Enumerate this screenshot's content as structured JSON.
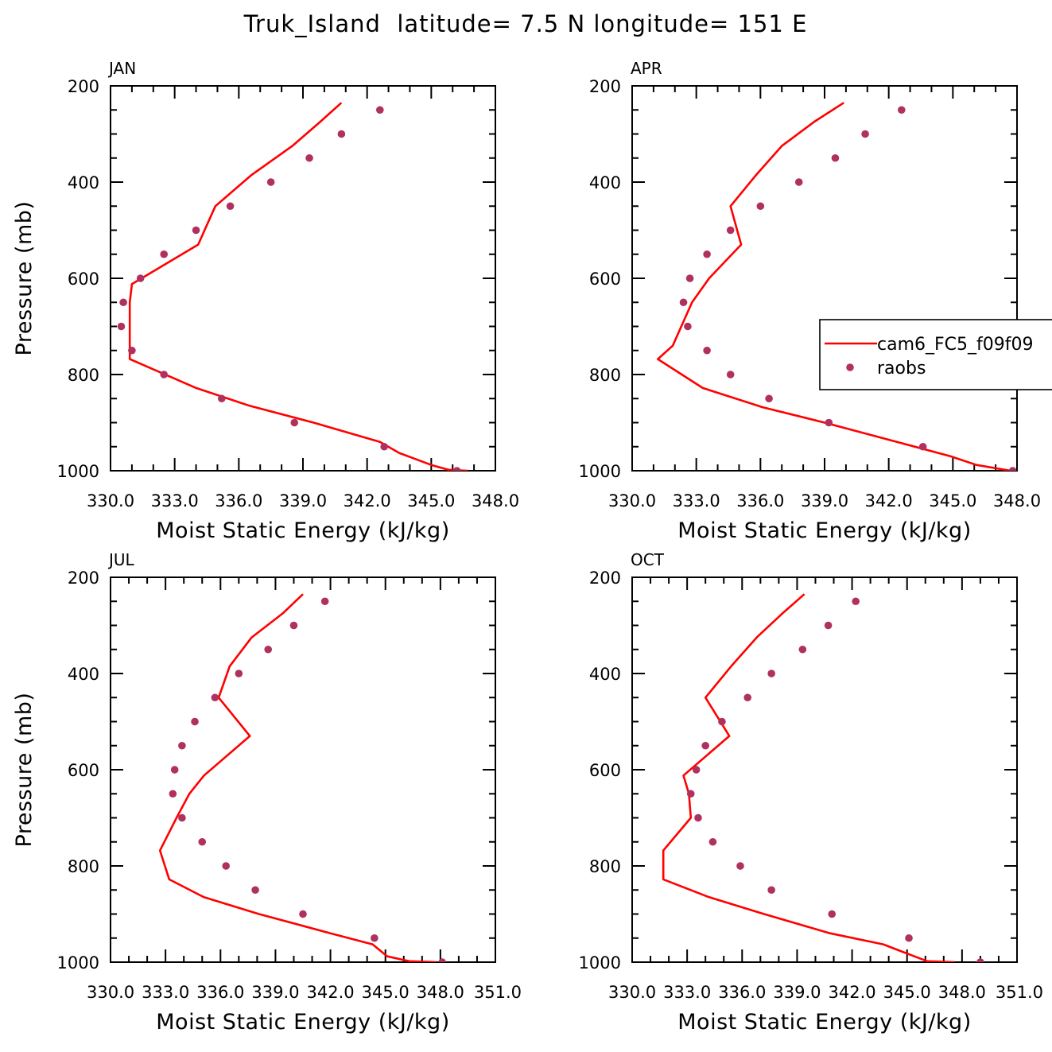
{
  "figure_title": "Truk_Island  latitude= 7.5 N longitude= 151 E",
  "colors": {
    "model": "#ff0000",
    "obs": "#b03060"
  },
  "legend": {
    "model_label": "cam6_FC5_f09f09",
    "obs_label": "raobs"
  },
  "chart_data": [
    {
      "type": "line",
      "panel_label": "JAN",
      "xlabel": "Moist Static Energy (kJ/kg)",
      "ylabel": "Pressure (mb)",
      "xlim": [
        330,
        348
      ],
      "ylim": [
        1000,
        200
      ],
      "x_ticks": [
        330,
        333,
        336,
        339,
        342,
        345,
        348
      ],
      "x_tick_labels": [
        "330.0",
        "333.0",
        "336.0",
        "339.0",
        "342.0",
        "345.0",
        "348.0"
      ],
      "y_ticks": [
        200,
        400,
        600,
        800,
        1000
      ],
      "y_tick_labels": [
        "200",
        "400",
        "600",
        "800",
        "1000"
      ],
      "series": [
        {
          "name": "cam6_FC5_f09f09",
          "kind": "line",
          "x": [
            340.8,
            339.8,
            338.5,
            336.6,
            334.9,
            334.1,
            331.0,
            330.9,
            330.9,
            330.9,
            334.0,
            336.5,
            339.5,
            342.6,
            343.5,
            345.0,
            345.8,
            346.7
          ],
          "y": [
            235,
            275,
            325,
            385,
            450,
            530,
            612,
            650,
            700,
            768,
            828,
            865,
            900,
            940,
            963,
            988,
            998,
            1000
          ]
        },
        {
          "name": "raobs",
          "kind": "scatter",
          "x": [
            342.6,
            340.8,
            339.3,
            337.5,
            335.6,
            334.0,
            332.5,
            331.4,
            330.6,
            330.5,
            331.0,
            332.5,
            335.2,
            338.6,
            342.8,
            346.2
          ],
          "y": [
            250,
            300,
            350,
            400,
            450,
            500,
            550,
            600,
            650,
            700,
            750,
            800,
            850,
            900,
            950,
            1000
          ]
        }
      ]
    },
    {
      "type": "line",
      "panel_label": "APR",
      "xlabel": "Moist Static Energy (kJ/kg)",
      "ylabel": "",
      "xlim": [
        330,
        348
      ],
      "ylim": [
        1000,
        200
      ],
      "x_ticks": [
        330,
        333,
        336,
        339,
        342,
        345,
        348
      ],
      "x_tick_labels": [
        "330.0",
        "333.0",
        "336.0",
        "339.0",
        "342.0",
        "345.0",
        "348.0"
      ],
      "y_ticks": [
        200,
        400,
        600,
        800,
        1000
      ],
      "y_tick_labels": [
        "200",
        "400",
        "600",
        "800",
        "1000"
      ],
      "legend_position": "right",
      "series": [
        {
          "name": "cam6_FC5_f09f09",
          "kind": "line",
          "x": [
            339.9,
            338.5,
            337.0,
            335.8,
            334.6,
            335.1,
            333.6,
            332.8,
            332.3,
            331.9,
            331.2,
            333.3,
            336.1,
            339.0,
            342.8,
            344.9,
            346.1,
            347.7
          ],
          "y": [
            235,
            275,
            325,
            385,
            450,
            530,
            600,
            650,
            700,
            740,
            768,
            828,
            868,
            900,
            945,
            970,
            988,
            1000
          ]
        },
        {
          "name": "raobs",
          "kind": "scatter",
          "x": [
            342.6,
            340.9,
            339.5,
            337.8,
            336.0,
            334.6,
            333.5,
            332.7,
            332.4,
            332.6,
            333.5,
            334.6,
            336.4,
            339.2,
            343.6,
            347.8
          ],
          "y": [
            250,
            300,
            350,
            400,
            450,
            500,
            550,
            600,
            650,
            700,
            750,
            800,
            850,
            900,
            950,
            1000
          ]
        }
      ]
    },
    {
      "type": "line",
      "panel_label": "JUL",
      "xlabel": "Moist Static Energy (kJ/kg)",
      "ylabel": "Pressure (mb)",
      "xlim": [
        330,
        351
      ],
      "ylim": [
        1000,
        200
      ],
      "x_ticks": [
        330,
        333,
        336,
        339,
        342,
        345,
        348,
        351
      ],
      "x_tick_labels": [
        "330.0",
        "333.0",
        "336.0",
        "339.0",
        "342.0",
        "345.0",
        "348.0",
        "351.0"
      ],
      "y_ticks": [
        200,
        400,
        600,
        800,
        1000
      ],
      "y_tick_labels": [
        "200",
        "400",
        "600",
        "800",
        "1000"
      ],
      "series": [
        {
          "name": "cam6_FC5_f09f09",
          "kind": "line",
          "x": [
            340.5,
            339.4,
            337.7,
            336.5,
            335.9,
            337.6,
            335.1,
            334.3,
            333.6,
            332.7,
            333.2,
            335.1,
            338.1,
            342.0,
            344.3,
            345.1,
            346.3,
            347.8
          ],
          "y": [
            235,
            275,
            325,
            385,
            450,
            530,
            612,
            650,
            700,
            768,
            828,
            865,
            900,
            940,
            963,
            988,
            998,
            1000
          ]
        },
        {
          "name": "raobs",
          "kind": "scatter",
          "x": [
            341.7,
            340.0,
            338.6,
            337.0,
            335.7,
            334.6,
            333.9,
            333.5,
            333.4,
            333.9,
            335.0,
            336.3,
            337.9,
            340.5,
            344.4,
            348.1
          ],
          "y": [
            250,
            300,
            350,
            400,
            450,
            500,
            550,
            600,
            650,
            700,
            750,
            800,
            850,
            900,
            950,
            1000
          ]
        }
      ]
    },
    {
      "type": "line",
      "panel_label": "OCT",
      "xlabel": "Moist Static Energy (kJ/kg)",
      "ylabel": "",
      "xlim": [
        330,
        351
      ],
      "ylim": [
        1000,
        200
      ],
      "x_ticks": [
        330,
        333,
        336,
        339,
        342,
        345,
        348,
        351
      ],
      "x_tick_labels": [
        "330.0",
        "333.0",
        "336.0",
        "339.0",
        "342.0",
        "345.0",
        "348.0",
        "351.0"
      ],
      "y_ticks": [
        200,
        400,
        600,
        800,
        1000
      ],
      "y_tick_labels": [
        "200",
        "400",
        "600",
        "800",
        "1000"
      ],
      "series": [
        {
          "name": "cam6_FC5_f09f09",
          "kind": "line",
          "x": [
            339.4,
            338.2,
            336.8,
            335.4,
            334.0,
            335.3,
            332.8,
            333.1,
            333.2,
            331.7,
            331.7,
            334.2,
            337.2,
            340.8,
            343.7,
            345.4,
            346.1,
            347.6
          ],
          "y": [
            235,
            275,
            325,
            385,
            450,
            530,
            612,
            650,
            700,
            768,
            828,
            865,
            900,
            940,
            963,
            988,
            998,
            1000
          ]
        },
        {
          "name": "raobs",
          "kind": "scatter",
          "x": [
            342.2,
            340.7,
            339.3,
            337.6,
            336.3,
            334.9,
            334.0,
            333.5,
            333.2,
            333.6,
            334.4,
            335.9,
            337.6,
            340.9,
            345.1,
            349.0
          ],
          "y": [
            250,
            300,
            350,
            400,
            450,
            500,
            550,
            600,
            650,
            700,
            750,
            800,
            850,
            900,
            950,
            1000
          ]
        }
      ]
    }
  ]
}
